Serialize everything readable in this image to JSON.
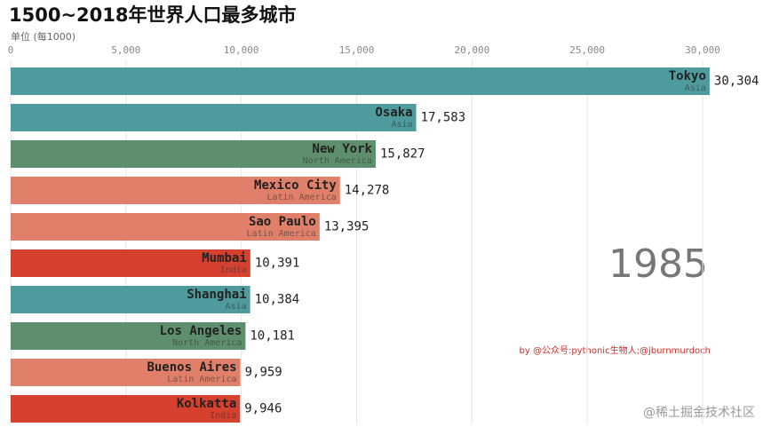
{
  "chart_data": {
    "type": "bar",
    "title": "1500~2018年世界人口最多城市",
    "axis_label": "单位 (每1000)",
    "categories": [
      "Tokyo",
      "Osaka",
      "New York",
      "Mexico City",
      "Sao Paulo",
      "Mumbai",
      "Shanghai",
      "Los Angeles",
      "Buenos Aires",
      "Kolkatta"
    ],
    "regions": [
      "Asia",
      "Asia",
      "North America",
      "Latin America",
      "Latin America",
      "India",
      "Asia",
      "North America",
      "Latin America",
      "India"
    ],
    "values": [
      30304,
      17583,
      15827,
      14278,
      13395,
      10391,
      10384,
      10181,
      9959,
      9946
    ],
    "value_labels": [
      "30,304",
      "17,583",
      "15,827",
      "14,278",
      "13,395",
      "10,391",
      "10,384",
      "10,181",
      "9,959",
      "9,946"
    ],
    "colors": [
      "#4f9a9c",
      "#4f9a9c",
      "#5e8f6d",
      "#e1806a",
      "#e1806a",
      "#d6402f",
      "#4f9a9c",
      "#5e8f6d",
      "#e1806a",
      "#d6402f"
    ],
    "xlim": [
      0,
      30000
    ],
    "xticks": [
      0,
      {
        "value": 5000,
        "label": "5,000"
      },
      {
        "value": 10000,
        "label": "10,000"
      },
      {
        "value": 15000,
        "label": "15,000"
      },
      {
        "value": 20000,
        "label": "20,000"
      },
      {
        "value": 25000,
        "label": "25,000"
      },
      {
        "value": 30000,
        "label": "30,000"
      }
    ],
    "grid": true,
    "year": "1985",
    "credit": "by @公众号:pythonic生物人;@jburnmurdoch",
    "watermark": "@稀土掘金技术社区"
  }
}
